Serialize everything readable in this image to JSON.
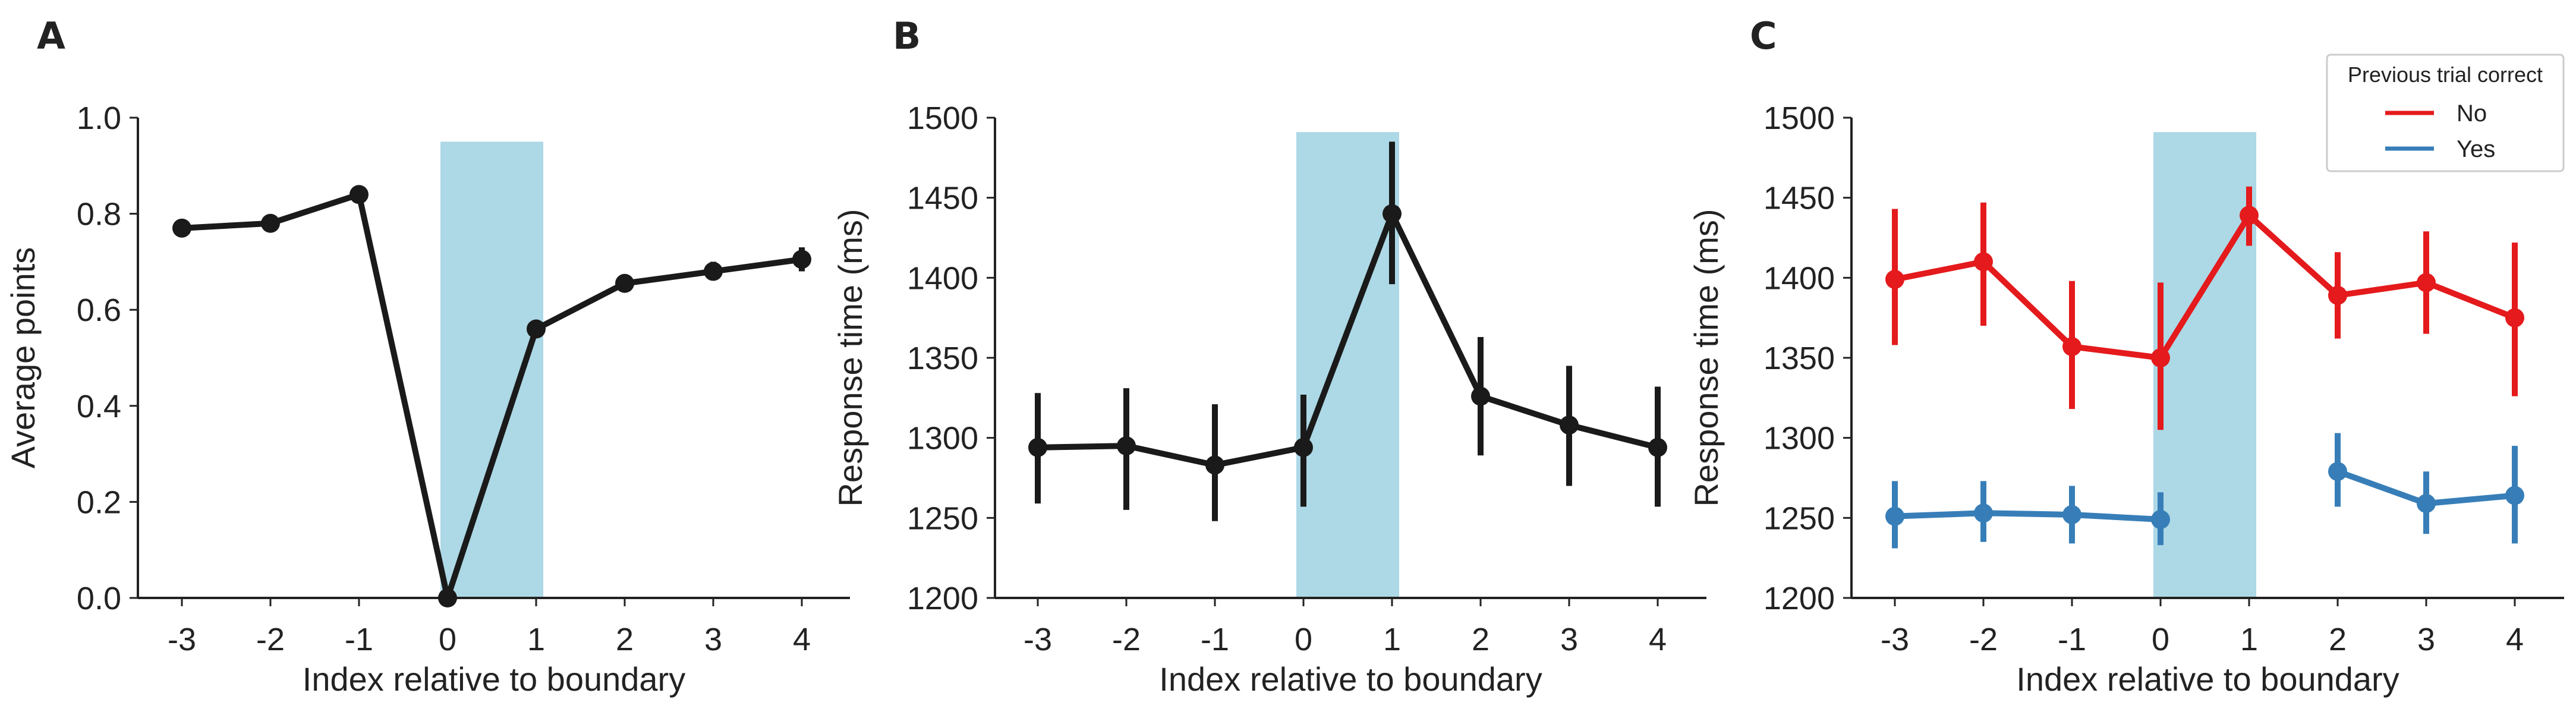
{
  "panels": [
    {
      "letter": "A"
    },
    {
      "letter": "B"
    },
    {
      "letter": "C"
    }
  ],
  "colors": {
    "axis": "#222222",
    "highlight": "#add8e6",
    "series_black": "#1a1a1a",
    "series_no": "#e41a1c",
    "series_yes": "#377eb8"
  },
  "chart_data": [
    {
      "type": "line",
      "panel": "A",
      "xlabel": "Index relative to boundary",
      "ylabel": "Average points",
      "categories": [
        "-3",
        "-2",
        "-1",
        "0",
        "1",
        "2",
        "3",
        "4"
      ],
      "ylim": [
        0.0,
        1.0
      ],
      "yticks": [
        "0.0",
        "0.2",
        "0.4",
        "0.6",
        "0.8",
        "1.0"
      ],
      "highlight_region": {
        "x_from": 0,
        "x_to": 1,
        "y_top": 0.95
      },
      "series": [
        {
          "values": [
            0.77,
            0.78,
            0.84,
            0.0,
            0.56,
            0.655,
            0.68,
            0.705
          ],
          "err_low": [
            0.755,
            0.77,
            0.83,
            0.0,
            0.545,
            0.64,
            0.665,
            0.68
          ],
          "err_high": [
            0.785,
            0.79,
            0.85,
            0.0,
            0.575,
            0.67,
            0.7,
            0.73
          ],
          "color": "#1a1a1a"
        }
      ],
      "grid": false
    },
    {
      "type": "line",
      "panel": "B",
      "xlabel": "Index relative to boundary",
      "ylabel": "Response time (ms)",
      "categories": [
        "-3",
        "-2",
        "-1",
        "0",
        "1",
        "2",
        "3",
        "4"
      ],
      "ylim": [
        1200,
        1500
      ],
      "yticks": [
        "1200",
        "1250",
        "1300",
        "1350",
        "1400",
        "1450",
        "1500"
      ],
      "highlight_region": {
        "x_from": 0,
        "x_to": 1,
        "y_top": 1491
      },
      "series": [
        {
          "values": [
            1294,
            1295,
            1283,
            1294,
            1440,
            1326,
            1308,
            1294
          ],
          "err_low": [
            1259,
            1255,
            1248,
            1257,
            1396,
            1289,
            1270,
            1257
          ],
          "err_high": [
            1328,
            1331,
            1321,
            1327,
            1485,
            1363,
            1345,
            1332
          ],
          "color": "#1a1a1a"
        }
      ],
      "grid": false
    },
    {
      "type": "line",
      "panel": "C",
      "xlabel": "Index relative to boundary",
      "ylabel": "Response time (ms)",
      "categories": [
        "-3",
        "-2",
        "-1",
        "0",
        "1",
        "2",
        "3",
        "4"
      ],
      "ylim": [
        1200,
        1500
      ],
      "yticks": [
        "1200",
        "1250",
        "1300",
        "1350",
        "1400",
        "1450",
        "1500"
      ],
      "highlight_region": {
        "x_from": 0,
        "x_to": 1,
        "y_top": 1491
      },
      "legend": {
        "title": "Previous trial correct",
        "position": "top-right"
      },
      "series": [
        {
          "name": "No",
          "color": "#e41a1c",
          "values": [
            1399,
            1410,
            1357,
            1350,
            1439,
            1389,
            1397,
            1375
          ],
          "err_low": [
            1358,
            1370,
            1318,
            1305,
            1420,
            1362,
            1365,
            1326
          ],
          "err_high": [
            1443,
            1447,
            1398,
            1397,
            1457,
            1416,
            1429,
            1422
          ],
          "segments": [
            [
              0,
              7
            ]
          ]
        },
        {
          "name": "Yes",
          "color": "#377eb8",
          "values": [
            1251,
            1253,
            1252,
            1249,
            null,
            1279,
            1259,
            1264
          ],
          "err_low": [
            1231,
            1235,
            1234,
            1233,
            null,
            1257,
            1240,
            1234
          ],
          "err_high": [
            1273,
            1273,
            1270,
            1266,
            null,
            1303,
            1279,
            1295
          ],
          "segments": [
            [
              0,
              3
            ],
            [
              5,
              7
            ]
          ]
        }
      ],
      "grid": false
    }
  ]
}
